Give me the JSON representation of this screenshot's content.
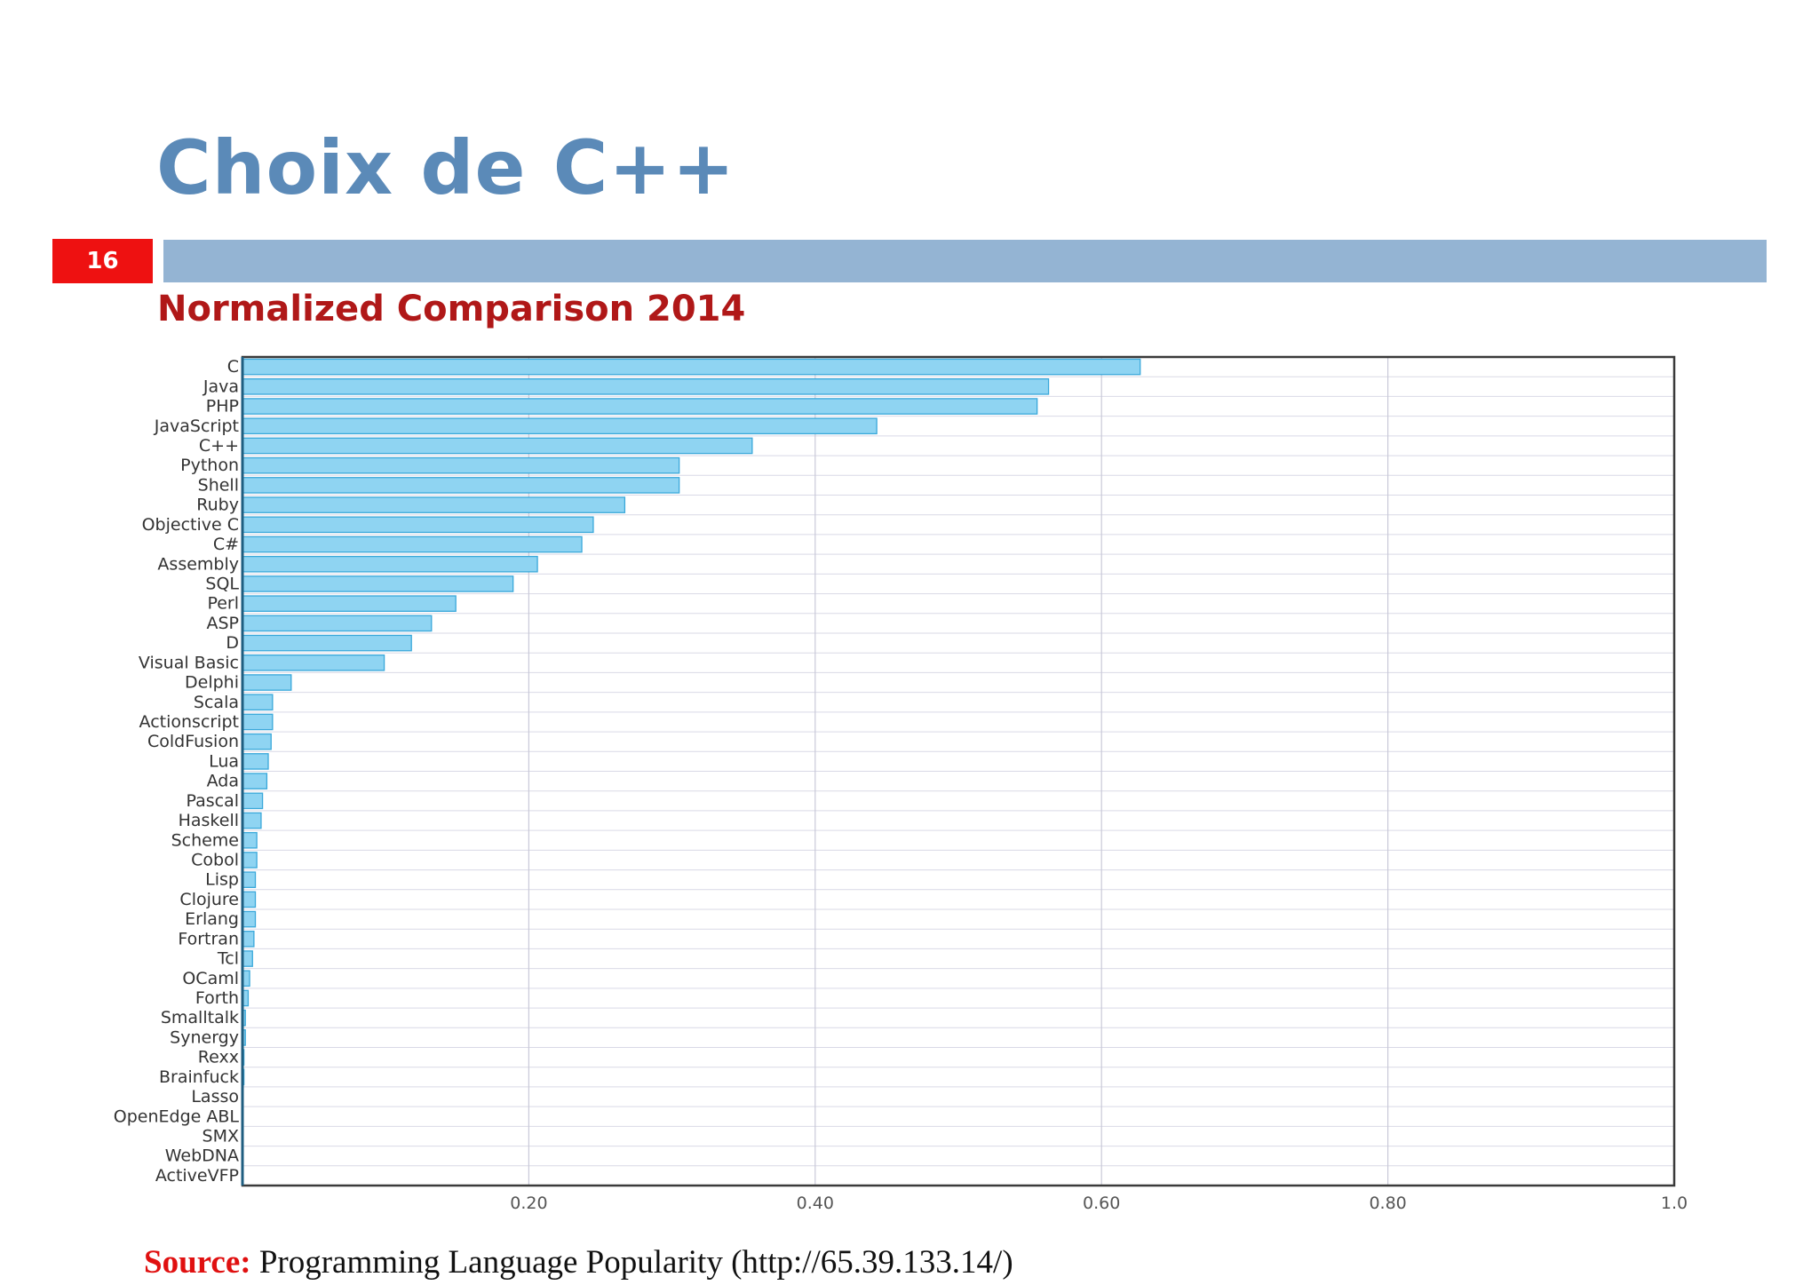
{
  "slide": {
    "title": "Choix de C++",
    "number": "16",
    "subtitle": "Normalized Comparison 2014",
    "source_label": "Source:",
    "source_text": "Programming Language Popularity (http://65.39.133.14/)"
  },
  "colors": {
    "title": "#5b8ab8",
    "bar_fill": "#8fd4f2",
    "bar_stroke": "#3aa8da",
    "title_bar": "#94b4d3",
    "slide_number_bg": "#ee1111",
    "subtitle": "#b01818"
  },
  "chart_data": {
    "type": "bar",
    "orientation": "horizontal",
    "title": "",
    "xlabel": "",
    "ylabel": "",
    "xlim": [
      0,
      1.0
    ],
    "xticks": [
      "0.20",
      "0.40",
      "0.60",
      "0.80",
      "1.0"
    ],
    "xtick_values": [
      0.2,
      0.4,
      0.6,
      0.8,
      1.0
    ],
    "grid": true,
    "categories": [
      "C",
      "Java",
      "PHP",
      "JavaScript",
      "C++",
      "Python",
      "Shell",
      "Ruby",
      "Objective C",
      "C#",
      "Assembly",
      "SQL",
      "Perl",
      "ASP",
      "D",
      "Visual Basic",
      "Delphi",
      "Scala",
      "Actionscript",
      "ColdFusion",
      "Lua",
      "Ada",
      "Pascal",
      "Haskell",
      "Scheme",
      "Cobol",
      "Lisp",
      "Clojure",
      "Erlang",
      "Fortran",
      "Tcl",
      "OCaml",
      "Forth",
      "Smalltalk",
      "Synergy",
      "Rexx",
      "Brainfuck",
      "Lasso",
      "OpenEdge ABL",
      "SMX",
      "WebDNA",
      "ActiveVFP"
    ],
    "values": [
      0.627,
      0.563,
      0.555,
      0.443,
      0.356,
      0.305,
      0.305,
      0.267,
      0.245,
      0.237,
      0.206,
      0.189,
      0.149,
      0.132,
      0.118,
      0.099,
      0.034,
      0.021,
      0.021,
      0.02,
      0.018,
      0.017,
      0.014,
      0.013,
      0.01,
      0.01,
      0.009,
      0.009,
      0.009,
      0.008,
      0.007,
      0.005,
      0.004,
      0.002,
      0.002,
      0.001,
      0.001,
      0.0,
      0.0,
      0.0,
      0.0,
      0.0
    ]
  }
}
